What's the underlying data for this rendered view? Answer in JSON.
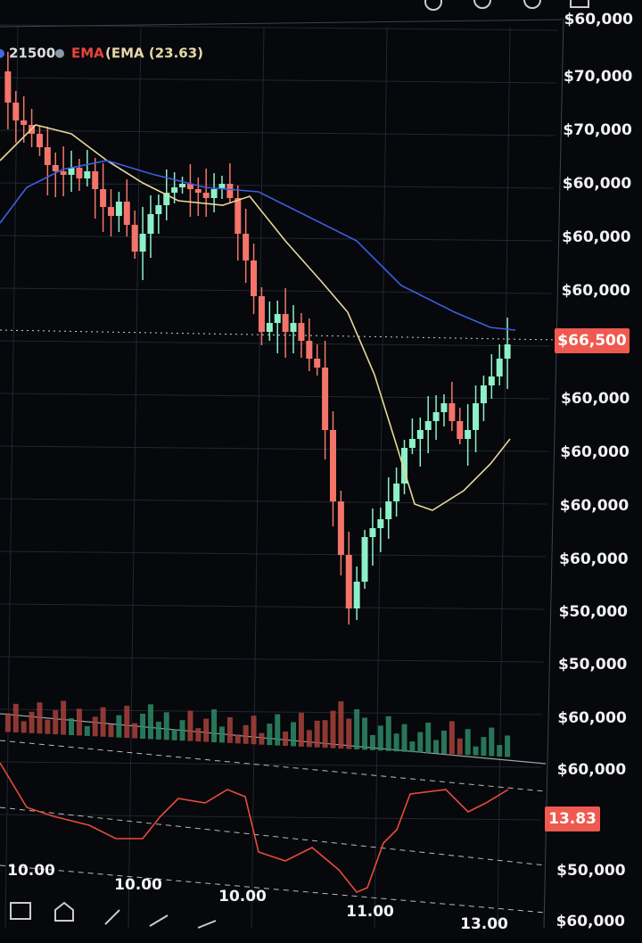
{
  "legend": {
    "value": "21500",
    "ema_label": "EMA",
    "ema_text": "(EMA (23.63)"
  },
  "price_axis": [
    "$60,000",
    "$70,000",
    "$70,000",
    "$60,000",
    "$60,000",
    "$60,000",
    "$60,000",
    "$60,000",
    "$60,000",
    "$60,000",
    "$50,000",
    "$50,000",
    "$60,000",
    "$60,000",
    "$50,000",
    "$60,000"
  ],
  "current_price": "$66,500",
  "indicator_value": "13.83",
  "time_axis": [
    "10.00",
    "10.00",
    "10.00",
    "11.00",
    "13.00"
  ]
}
